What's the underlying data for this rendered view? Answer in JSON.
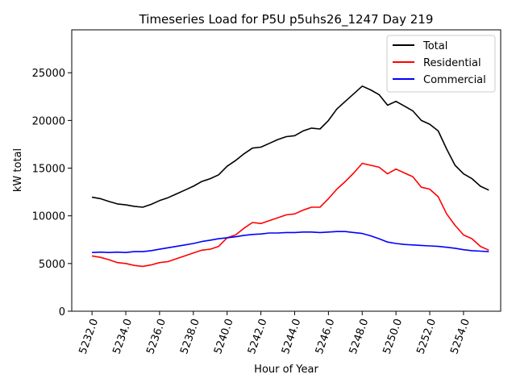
{
  "chart_data": {
    "type": "line",
    "title": "Timeseries Load for P5U p5uhs26_1247  Day 219",
    "xlabel": "Hour of Year",
    "ylabel": "kW total",
    "xlim": [
      5230.8,
      5256.2
    ],
    "ylim": [
      0,
      29500
    ],
    "x_ticks": [
      5232,
      5234,
      5236,
      5238,
      5240,
      5242,
      5244,
      5246,
      5248,
      5250,
      5252,
      5254
    ],
    "x_tick_labels": [
      "5232.0",
      "5234.0",
      "5236.0",
      "5238.0",
      "5240.0",
      "5242.0",
      "5244.0",
      "5246.0",
      "5248.0",
      "5250.0",
      "5252.0",
      "5254.0"
    ],
    "y_ticks": [
      0,
      5000,
      10000,
      15000,
      20000,
      25000
    ],
    "y_tick_labels": [
      "0",
      "5000",
      "10000",
      "15000",
      "20000",
      "25000"
    ],
    "grid": false,
    "legend_position": "top-right",
    "x": [
      5232.0,
      5232.5,
      5233.0,
      5233.5,
      5234.0,
      5234.5,
      5235.0,
      5235.5,
      5236.0,
      5236.5,
      5237.0,
      5237.5,
      5238.0,
      5238.5,
      5239.0,
      5239.5,
      5240.0,
      5240.5,
      5241.0,
      5241.5,
      5242.0,
      5242.5,
      5243.0,
      5243.5,
      5244.0,
      5244.5,
      5245.0,
      5245.5,
      5246.0,
      5246.5,
      5247.0,
      5247.5,
      5248.0,
      5248.5,
      5249.0,
      5249.5,
      5250.0,
      5250.5,
      5251.0,
      5251.5,
      5252.0,
      5252.5,
      5253.0,
      5253.5,
      5254.0,
      5254.5,
      5255.0,
      5255.5
    ],
    "series": [
      {
        "name": "Total",
        "color": "#000000",
        "values": [
          11950,
          11800,
          11500,
          11250,
          11150,
          11000,
          10900,
          11200,
          11600,
          11900,
          12300,
          12700,
          13100,
          13600,
          13900,
          14300,
          15200,
          15800,
          16500,
          17100,
          17200,
          17600,
          18000,
          18300,
          18400,
          18900,
          19200,
          19100,
          20000,
          21200,
          22000,
          22800,
          23600,
          23200,
          22700,
          21600,
          22000,
          21500,
          21000,
          20000,
          19600,
          18900,
          17000,
          15300,
          14400,
          13900,
          13100,
          12700
        ]
      },
      {
        "name": "Residential",
        "color": "#ff0000",
        "values": [
          5800,
          5650,
          5400,
          5100,
          5000,
          4800,
          4700,
          4850,
          5100,
          5200,
          5500,
          5800,
          6100,
          6400,
          6500,
          6800,
          7700,
          8000,
          8700,
          9300,
          9200,
          9500,
          9800,
          10100,
          10200,
          10600,
          10900,
          10900,
          11800,
          12800,
          13600,
          14500,
          15500,
          15300,
          15100,
          14400,
          14900,
          14500,
          14100,
          13000,
          12800,
          12000,
          10200,
          9000,
          8000,
          7600,
          6800,
          6400
        ]
      },
      {
        "name": "Commercial",
        "color": "#0000ff",
        "values": [
          6150,
          6200,
          6150,
          6200,
          6150,
          6250,
          6250,
          6350,
          6500,
          6650,
          6800,
          6950,
          7100,
          7300,
          7450,
          7600,
          7700,
          7800,
          7950,
          8050,
          8100,
          8200,
          8200,
          8250,
          8250,
          8300,
          8300,
          8250,
          8300,
          8350,
          8350,
          8250,
          8150,
          7900,
          7600,
          7250,
          7100,
          7000,
          6950,
          6900,
          6850,
          6800,
          6700,
          6600,
          6450,
          6350,
          6300,
          6250
        ]
      }
    ]
  }
}
